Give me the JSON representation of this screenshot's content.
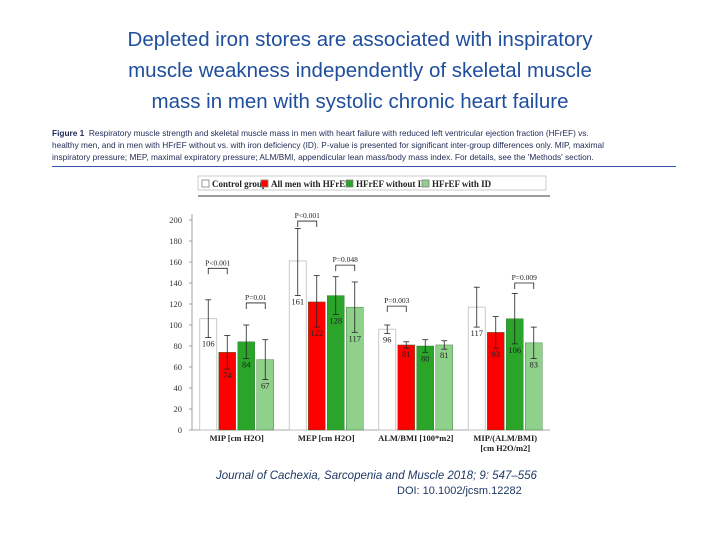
{
  "slide": {
    "title_lines": [
      "Depleted iron stores are associated with inspiratory",
      "muscle weakness independently of skeletal muscle",
      "mass in men with systolic chronic heart failure"
    ],
    "caption_lead": "Figure 1",
    "caption_lines": [
      "Respiratory muscle strength and skeletal muscle mass in men with heart failure with reduced left ventricular ejection fraction (HFrEF) vs.",
      "healthy men, and in men with HFrEF without vs. with iron deficiency (ID). P-value is presented for significant inter-group differences only. MIP, maximal",
      "inspiratory pressure; MEP, maximal expiratory pressure; ALM/BMI, appendicular lean mass/body mass index. For details, see the 'Methods' section."
    ],
    "journal": "Journal of Cachexia, Sarcopenia and Muscle 2018; 9: 547–556",
    "doi": "DOI: 10.1002/jcsm.12282"
  },
  "chart_data": {
    "type": "bar",
    "categories": [
      "MIP [cm H2O]",
      "MEP [cm H2O]",
      "ALM/BMI [100*m2]",
      [
        "MIP/(ALM/BMI)",
        "[cm H2O/m2]"
      ]
    ],
    "series": [
      {
        "name": "Control group",
        "color": "#ffffff",
        "values": [
          106,
          161,
          96,
          117
        ]
      },
      {
        "name": "All men with HFrEF",
        "color": "#ff0000",
        "values": [
          74,
          122,
          81,
          93
        ]
      },
      {
        "name": "HFrEF without ID",
        "color": "#2aa52a",
        "values": [
          84,
          128,
          80,
          106
        ]
      },
      {
        "name": "HFrEF with ID",
        "color": "#8fd08a",
        "values": [
          67,
          117,
          81,
          83
        ]
      }
    ],
    "value_labels": [
      [
        "106",
        "74",
        "84",
        "67"
      ],
      [
        "161",
        "122",
        "128",
        "117"
      ],
      [
        "96",
        "81",
        "80",
        "81"
      ],
      [
        "117",
        "93",
        "106",
        "83"
      ]
    ],
    "error_bars": [
      [
        [
          88,
          124
        ],
        [
          58,
          90
        ],
        [
          68,
          100
        ],
        [
          48,
          86
        ]
      ],
      [
        [
          128,
          192
        ],
        [
          98,
          147
        ],
        [
          110,
          146
        ],
        [
          93,
          141
        ]
      ],
      [
        [
          92,
          100
        ],
        [
          78,
          84
        ],
        [
          74,
          86
        ],
        [
          77,
          85
        ]
      ],
      [
        [
          98,
          136
        ],
        [
          78,
          108
        ],
        [
          82,
          130
        ],
        [
          68,
          98
        ]
      ]
    ],
    "ylim": [
      0,
      200
    ],
    "yticks": [
      "0",
      "20",
      "40",
      "60",
      "80",
      "100",
      "120",
      "140",
      "160",
      "180",
      "200"
    ],
    "legend_position": "top",
    "annotations": [
      {
        "label": "P<0.001",
        "group": 0,
        "from": 0,
        "to": 1,
        "y": 154
      },
      {
        "label": "P=0.01",
        "group": 0,
        "from": 2,
        "to": 3,
        "y": 121
      },
      {
        "label": "P<0.001",
        "group": 1,
        "from": 0,
        "to": 1,
        "y": 199
      },
      {
        "label": "P=0.048",
        "group": 1,
        "from": 2,
        "to": 3,
        "y": 157
      },
      {
        "label": "P=0.003",
        "group": 2,
        "from": 0,
        "to": 1,
        "y": 118
      },
      {
        "label": "P=0.009",
        "group": 3,
        "from": 2,
        "to": 3,
        "y": 140
      }
    ]
  }
}
